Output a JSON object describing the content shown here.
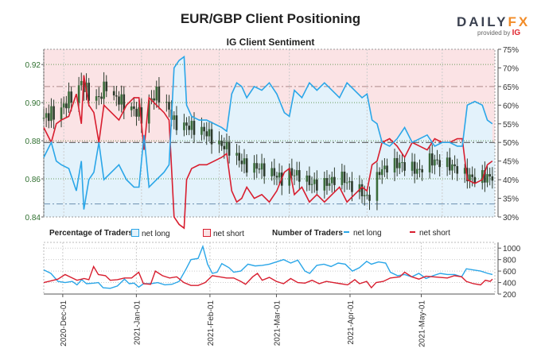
{
  "header": {
    "title": "EUR/GBP Client Positioning",
    "subtitle": "IG Client Sentiment",
    "logo_text": "DAILYFX",
    "provided_by": "provided by",
    "ig": "IG"
  },
  "legend": {
    "pct_label": "Percentage of Traders",
    "pct_long": "net long",
    "pct_short": "net short",
    "num_label": "Number of Traders",
    "num_long": "net long",
    "num_short": "net short"
  },
  "colors": {
    "long": "#2aa6e8",
    "short": "#d81e2f",
    "candle": "#2d3b2d",
    "pink": "#fbe3e5",
    "blue": "#e3f2fb"
  },
  "chart_data": [
    {
      "type": "candlestick+line",
      "title": "IG Client Sentiment",
      "day0": "2020-11-23",
      "left_axis": {
        "range": [
          0.84,
          0.928
        ],
        "ticks": [
          "0.84",
          "0.86",
          "0.88",
          "0.90",
          "0.92"
        ],
        "values": [
          0.84,
          0.86,
          0.88,
          0.9,
          0.92
        ]
      },
      "right_axis": {
        "range": [
          30,
          75
        ],
        "ticks": [
          "30%",
          "35%",
          "40%",
          "45%",
          "50%",
          "55%",
          "60%",
          "65%",
          "70%",
          "75%"
        ],
        "values": [
          30,
          35,
          40,
          45,
          50,
          55,
          60,
          65,
          70,
          75
        ]
      },
      "x_ticks": [
        {
          "label": "2020-Dec-01",
          "day": 8
        },
        {
          "label": "2021-Jan-01",
          "day": 39
        },
        {
          "label": "2021-Feb-01",
          "day": 70
        },
        {
          "label": "2021-Mar-01",
          "day": 98
        },
        {
          "label": "2021-Apr-01",
          "day": 129
        },
        {
          "label": "2021-May-01",
          "day": 159
        }
      ],
      "price_close": [
        [
          0,
          0.892
        ],
        [
          4,
          0.895
        ],
        [
          8,
          0.898
        ],
        [
          12,
          0.906
        ],
        [
          15,
          0.91
        ],
        [
          18,
          0.905
        ],
        [
          22,
          0.902
        ],
        [
          25,
          0.91
        ],
        [
          28,
          0.903
        ],
        [
          32,
          0.9
        ],
        [
          36,
          0.896
        ],
        [
          39,
          0.893
        ],
        [
          42,
          0.9
        ],
        [
          45,
          0.905
        ],
        [
          48,
          0.902
        ],
        [
          52,
          0.89
        ],
        [
          56,
          0.888
        ],
        [
          60,
          0.887
        ],
        [
          64,
          0.885
        ],
        [
          67,
          0.882
        ],
        [
          70,
          0.878
        ],
        [
          74,
          0.876
        ],
        [
          78,
          0.87
        ],
        [
          82,
          0.866
        ],
        [
          86,
          0.866
        ],
        [
          90,
          0.864
        ],
        [
          95,
          0.86
        ],
        [
          98,
          0.863
        ],
        [
          102,
          0.862
        ],
        [
          106,
          0.858
        ],
        [
          110,
          0.857
        ],
        [
          114,
          0.858
        ],
        [
          118,
          0.862
        ],
        [
          122,
          0.857
        ],
        [
          126,
          0.854
        ],
        [
          129,
          0.85
        ],
        [
          131,
          0.853
        ],
        [
          134,
          0.864
        ],
        [
          138,
          0.867
        ],
        [
          142,
          0.868
        ],
        [
          146,
          0.866
        ],
        [
          150,
          0.864
        ],
        [
          153,
          0.87
        ],
        [
          157,
          0.869
        ],
        [
          160,
          0.868
        ],
        [
          164,
          0.866
        ],
        [
          168,
          0.862
        ],
        [
          172,
          0.86
        ],
        [
          176,
          0.861
        ],
        [
          179,
          0.861
        ]
      ],
      "net_long_pct": [
        [
          0,
          46
        ],
        [
          3,
          50
        ],
        [
          5,
          45
        ],
        [
          7,
          44
        ],
        [
          10,
          43
        ],
        [
          13,
          37
        ],
        [
          15,
          45
        ],
        [
          16,
          32
        ],
        [
          18,
          40
        ],
        [
          20,
          42
        ],
        [
          22,
          50
        ],
        [
          24,
          40
        ],
        [
          27,
          42
        ],
        [
          30,
          44
        ],
        [
          33,
          40
        ],
        [
          36,
          38
        ],
        [
          38,
          38
        ],
        [
          40,
          52
        ],
        [
          42,
          38
        ],
        [
          45,
          40
        ],
        [
          48,
          42
        ],
        [
          50,
          44
        ],
        [
          52,
          70
        ],
        [
          54,
          72
        ],
        [
          56,
          73
        ],
        [
          57,
          60
        ],
        [
          59,
          57
        ],
        [
          62,
          56
        ],
        [
          65,
          56
        ],
        [
          68,
          55
        ],
        [
          71,
          54
        ],
        [
          73,
          53
        ],
        [
          75,
          63
        ],
        [
          77,
          66
        ],
        [
          79,
          65
        ],
        [
          81,
          62
        ],
        [
          84,
          65
        ],
        [
          87,
          64
        ],
        [
          90,
          66
        ],
        [
          93,
          63
        ],
        [
          96,
          58
        ],
        [
          98,
          57
        ],
        [
          100,
          64
        ],
        [
          103,
          62
        ],
        [
          106,
          66
        ],
        [
          109,
          64
        ],
        [
          112,
          66
        ],
        [
          115,
          64
        ],
        [
          118,
          62
        ],
        [
          121,
          66
        ],
        [
          124,
          64
        ],
        [
          127,
          62
        ],
        [
          129,
          63
        ],
        [
          131,
          56
        ],
        [
          133,
          55
        ],
        [
          135,
          50
        ],
        [
          138,
          49
        ],
        [
          141,
          51
        ],
        [
          144,
          54
        ],
        [
          147,
          50
        ],
        [
          150,
          51
        ],
        [
          153,
          52
        ],
        [
          156,
          49
        ],
        [
          159,
          50
        ],
        [
          162,
          50
        ],
        [
          165,
          49
        ],
        [
          167,
          49
        ],
        [
          169,
          60
        ],
        [
          172,
          61
        ],
        [
          175,
          60
        ],
        [
          177,
          56
        ],
        [
          179,
          55
        ]
      ],
      "net_short_pct_note": "100 minus net long"
    },
    {
      "type": "line",
      "title": "Number of Traders",
      "y_axis": {
        "range": [
          200,
          1100
        ],
        "ticks": [
          "200",
          "400",
          "600",
          "800",
          "1000"
        ],
        "values": [
          200,
          400,
          600,
          800,
          1000
        ]
      },
      "series": [
        {
          "name": "net long",
          "values": [
            [
              0,
              620
            ],
            [
              3,
              560
            ],
            [
              6,
              420
            ],
            [
              9,
              400
            ],
            [
              12,
              420
            ],
            [
              14,
              360
            ],
            [
              16,
              450
            ],
            [
              18,
              380
            ],
            [
              21,
              390
            ],
            [
              23,
              400
            ],
            [
              25,
              310
            ],
            [
              28,
              300
            ],
            [
              31,
              340
            ],
            [
              34,
              460
            ],
            [
              36,
              380
            ],
            [
              38,
              390
            ],
            [
              40,
              320
            ],
            [
              42,
              380
            ],
            [
              45,
              380
            ],
            [
              48,
              400
            ],
            [
              51,
              360
            ],
            [
              54,
              370
            ],
            [
              57,
              420
            ],
            [
              60,
              640
            ],
            [
              62,
              800
            ],
            [
              65,
              820
            ],
            [
              67,
              1030
            ],
            [
              69,
              720
            ],
            [
              71,
              560
            ],
            [
              73,
              580
            ],
            [
              75,
              730
            ],
            [
              78,
              660
            ],
            [
              80,
              580
            ],
            [
              83,
              600
            ],
            [
              86,
              720
            ],
            [
              89,
              690
            ],
            [
              92,
              700
            ],
            [
              95,
              720
            ],
            [
              98,
              760
            ],
            [
              101,
              800
            ],
            [
              104,
              740
            ],
            [
              107,
              790
            ],
            [
              110,
              600
            ],
            [
              112,
              560
            ],
            [
              115,
              700
            ],
            [
              118,
              720
            ],
            [
              121,
              680
            ],
            [
              124,
              740
            ],
            [
              127,
              720
            ],
            [
              130,
              600
            ],
            [
              133,
              660
            ],
            [
              136,
              770
            ],
            [
              138,
              720
            ],
            [
              141,
              760
            ],
            [
              144,
              740
            ],
            [
              146,
              580
            ],
            [
              149,
              520
            ],
            [
              152,
              540
            ],
            [
              155,
              500
            ],
            [
              158,
              560
            ],
            [
              161,
              470
            ],
            [
              164,
              520
            ],
            [
              167,
              560
            ],
            [
              170,
              540
            ],
            [
              173,
              540
            ],
            [
              176,
              500
            ],
            [
              178,
              640
            ],
            [
              181,
              620
            ],
            [
              184,
              600
            ],
            [
              187,
              560
            ],
            [
              189,
              540
            ]
          ]
        },
        {
          "name": "net short",
          "values": [
            [
              0,
              400
            ],
            [
              3,
              430
            ],
            [
              6,
              460
            ],
            [
              9,
              540
            ],
            [
              12,
              480
            ],
            [
              14,
              440
            ],
            [
              17,
              470
            ],
            [
              19,
              450
            ],
            [
              21,
              680
            ],
            [
              23,
              540
            ],
            [
              26,
              520
            ],
            [
              28,
              440
            ],
            [
              31,
              450
            ],
            [
              34,
              480
            ],
            [
              37,
              480
            ],
            [
              40,
              580
            ],
            [
              42,
              380
            ],
            [
              45,
              370
            ],
            [
              47,
              600
            ],
            [
              50,
              520
            ],
            [
              53,
              480
            ],
            [
              56,
              500
            ],
            [
              59,
              400
            ],
            [
              62,
              350
            ],
            [
              65,
              350
            ],
            [
              68,
              400
            ],
            [
              71,
              520
            ],
            [
              74,
              500
            ],
            [
              77,
              480
            ],
            [
              80,
              480
            ],
            [
              83,
              420
            ],
            [
              85,
              370
            ],
            [
              88,
              500
            ],
            [
              90,
              560
            ],
            [
              92,
              440
            ],
            [
              95,
              490
            ],
            [
              98,
              420
            ],
            [
              101,
              380
            ],
            [
              104,
              470
            ],
            [
              107,
              400
            ],
            [
              110,
              390
            ],
            [
              113,
              440
            ],
            [
              116,
              380
            ],
            [
              119,
              420
            ],
            [
              122,
              400
            ],
            [
              125,
              380
            ],
            [
              128,
              360
            ],
            [
              131,
              450
            ],
            [
              133,
              380
            ],
            [
              136,
              420
            ],
            [
              138,
              310
            ],
            [
              140,
              400
            ],
            [
              143,
              420
            ],
            [
              146,
              480
            ],
            [
              150,
              500
            ],
            [
              152,
              580
            ],
            [
              155,
              500
            ],
            [
              158,
              460
            ],
            [
              161,
              510
            ],
            [
              164,
              500
            ],
            [
              167,
              490
            ],
            [
              170,
              480
            ],
            [
              173,
              520
            ],
            [
              176,
              500
            ],
            [
              178,
              420
            ],
            [
              181,
              380
            ],
            [
              184,
              360
            ],
            [
              186,
              440
            ],
            [
              188,
              420
            ],
            [
              189,
              460
            ]
          ]
        }
      ]
    }
  ]
}
